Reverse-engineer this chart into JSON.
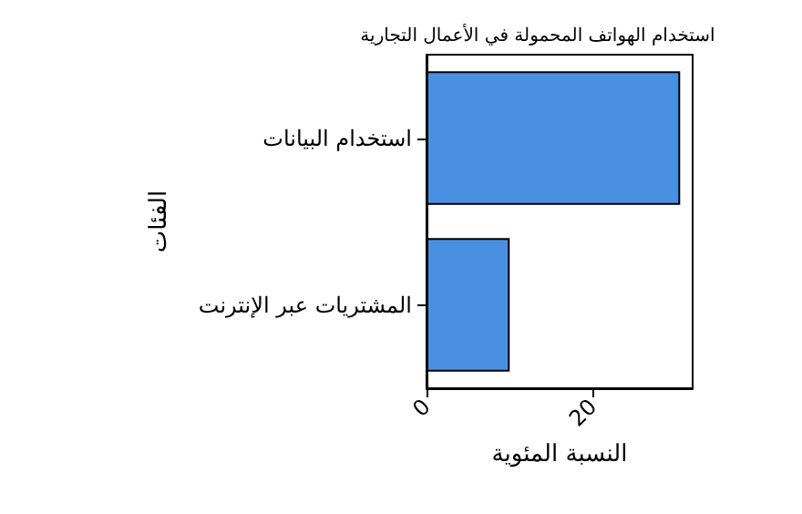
{
  "chart_data": {
    "type": "bar",
    "orientation": "horizontal",
    "title": "استخدام الهواتف المحمولة في الأعمال التجارية",
    "xlabel": "النسبة المئوية",
    "ylabel": "الفئات",
    "categories": [
      "استخدام البيانات",
      "المشتريات عبر الإنترنت"
    ],
    "values": [
      30.5,
      10
    ],
    "color": "#4a90e2",
    "xlim": [
      0,
      32
    ],
    "xticks": [
      0,
      20
    ],
    "grid": false
  }
}
